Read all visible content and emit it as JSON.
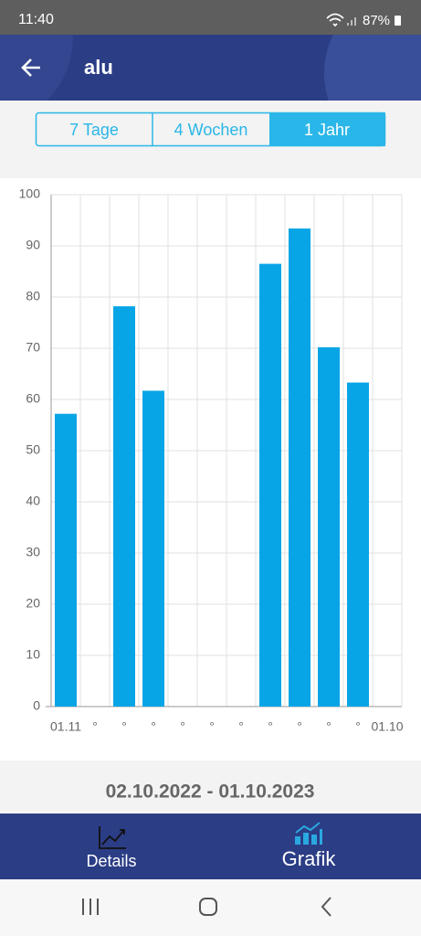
{
  "status": {
    "time": "11:40",
    "battery": "87%"
  },
  "header": {
    "title": "alu"
  },
  "tabs": [
    "7 Tage",
    "4 Wochen",
    "1 Jahr"
  ],
  "chart_data": {
    "type": "bar",
    "categories": [
      "01.11",
      "°",
      "°",
      "°",
      "°",
      "°",
      "°",
      "°",
      "°",
      "°",
      "°",
      "01.10"
    ],
    "values": [
      57.2,
      null,
      78.2,
      61.7,
      null,
      null,
      null,
      86.5,
      93.4,
      70.2,
      63.3,
      null
    ],
    "color": "#08a5e6",
    "ylim": [
      0,
      100
    ],
    "yticks": [
      0,
      10,
      20,
      30,
      40,
      50,
      60,
      70,
      80,
      90,
      100
    ],
    "grid": true
  },
  "date_range": "02.10.2022 - 01.10.2023",
  "nav": [
    "Details",
    "Grafik"
  ]
}
